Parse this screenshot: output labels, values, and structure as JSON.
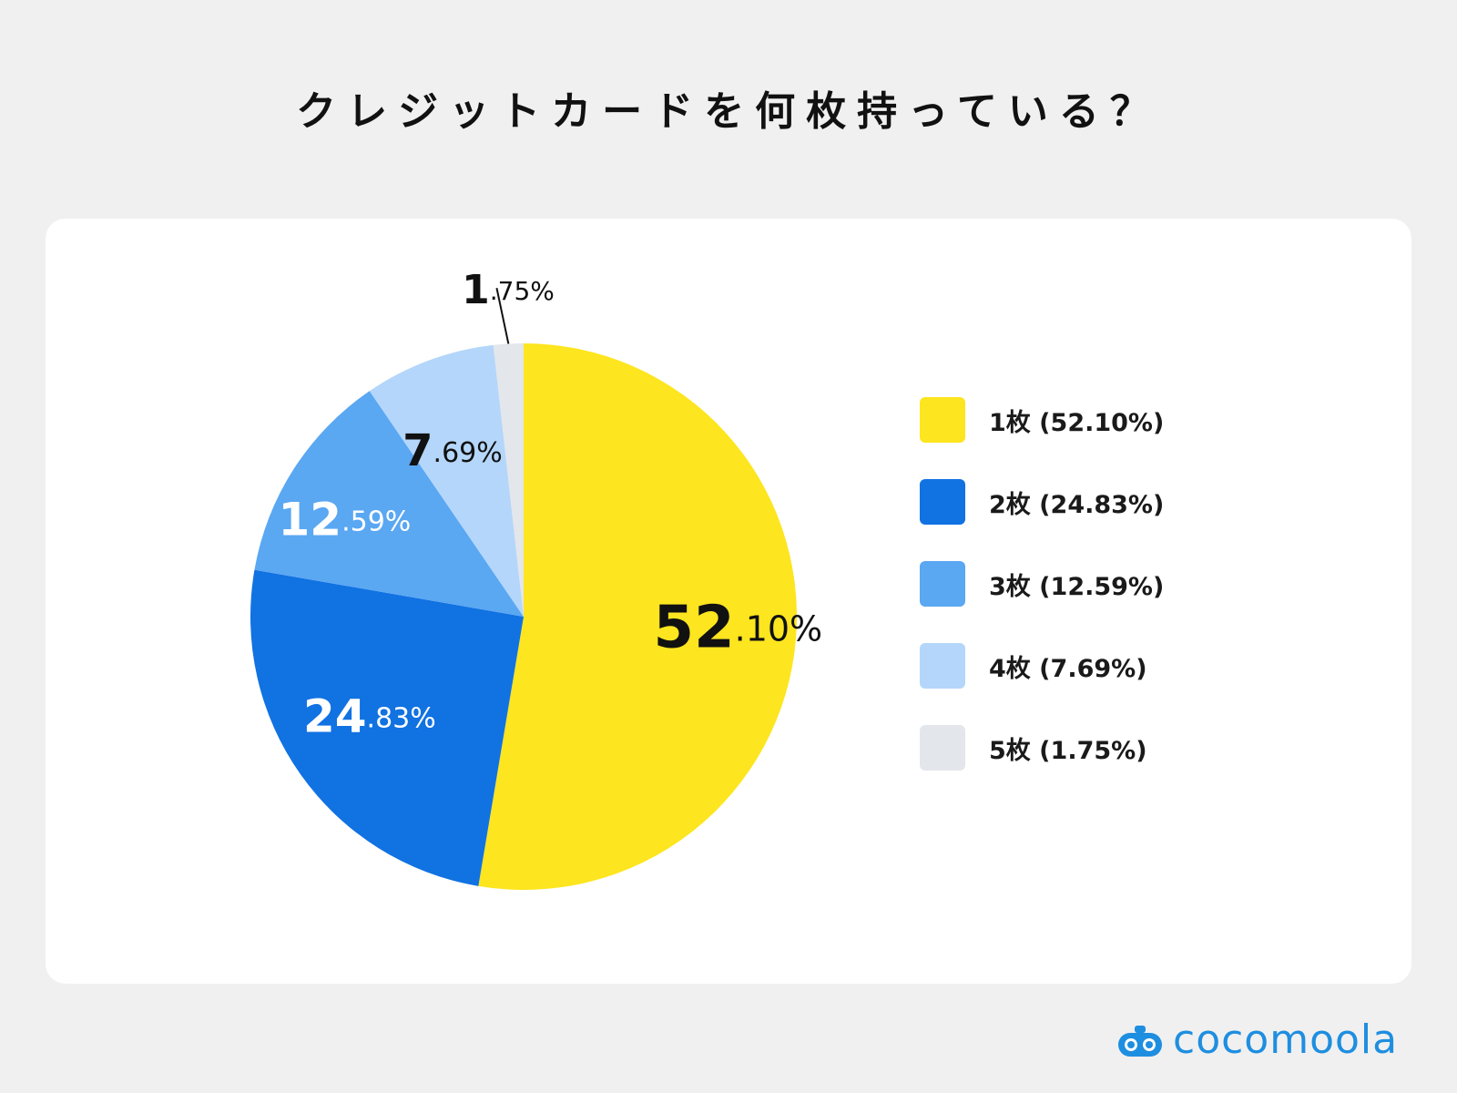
{
  "title": "クレジットカードを何枚持っている？",
  "chart_data": {
    "type": "pie",
    "title": "クレジットカードを何枚持っている？",
    "slices": [
      {
        "label": "1枚 (52.10%)",
        "value": 52.1,
        "label_int": "52",
        "label_frac": ".10%",
        "color": "#fde51f",
        "label_color": "#111111"
      },
      {
        "label": "2枚 (24.83%)",
        "value": 24.83,
        "label_int": "24",
        "label_frac": ".83%",
        "color": "#1172e2",
        "label_color": "#ffffff"
      },
      {
        "label": "3枚 (12.59%)",
        "value": 12.59,
        "label_int": "12",
        "label_frac": ".59%",
        "color": "#5aa7f2",
        "label_color": "#ffffff"
      },
      {
        "label": "4枚 (7.69%)",
        "value": 7.69,
        "label_int": "7",
        "label_frac": ".69%",
        "color": "#b4d6fa",
        "label_color": "#111111"
      },
      {
        "label": "5枚 (1.75%)",
        "value": 1.75,
        "label_int": "1",
        "label_frac": ".75%",
        "color": "#e3e6ea",
        "label_color": "#111111"
      }
    ],
    "start_angle": "12 o'clock",
    "direction": "clockwise",
    "legend_position": "right"
  },
  "logo": {
    "text": "cocomoola",
    "color": "#1e8ee0"
  }
}
